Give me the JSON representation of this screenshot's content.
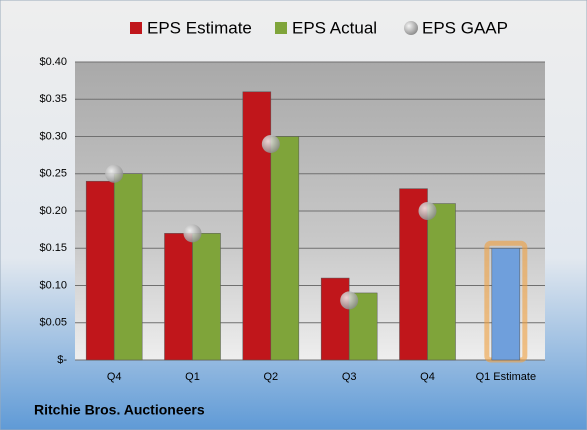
{
  "chart_data": {
    "type": "bar",
    "title": "Ritchie Bros. Auctioneers",
    "categories": [
      "Q4",
      "Q1",
      "Q2",
      "Q3",
      "Q4",
      "Q1 Estimate"
    ],
    "series": [
      {
        "name": "EPS Estimate",
        "color": "#c0161b",
        "values": [
          0.24,
          0.17,
          0.36,
          0.11,
          0.23,
          null
        ]
      },
      {
        "name": "EPS Actual",
        "color": "#7fa43a",
        "values": [
          0.25,
          0.17,
          0.3,
          0.09,
          0.21,
          null
        ]
      },
      {
        "name": "EPS GAAP",
        "color": "#a8a8a8",
        "marker": "circle",
        "values": [
          0.25,
          0.17,
          0.29,
          0.08,
          0.2,
          null
        ]
      }
    ],
    "projection": {
      "color": "#6f9fdc",
      "glow": "#f0a040",
      "values": [
        null,
        null,
        null,
        null,
        null,
        0.15
      ]
    },
    "ylim": [
      0,
      0.4
    ],
    "yticks": [
      {
        "value": 0,
        "label": "$-"
      },
      {
        "value": 0.05,
        "label": "$0.05"
      },
      {
        "value": 0.1,
        "label": "$0.10"
      },
      {
        "value": 0.15,
        "label": "$0.15"
      },
      {
        "value": 0.2,
        "label": "$0.20"
      },
      {
        "value": 0.25,
        "label": "$0.25"
      },
      {
        "value": 0.3,
        "label": "$0.30"
      },
      {
        "value": 0.35,
        "label": "$0.35"
      },
      {
        "value": 0.4,
        "label": "$0.40"
      }
    ],
    "grid": true
  }
}
